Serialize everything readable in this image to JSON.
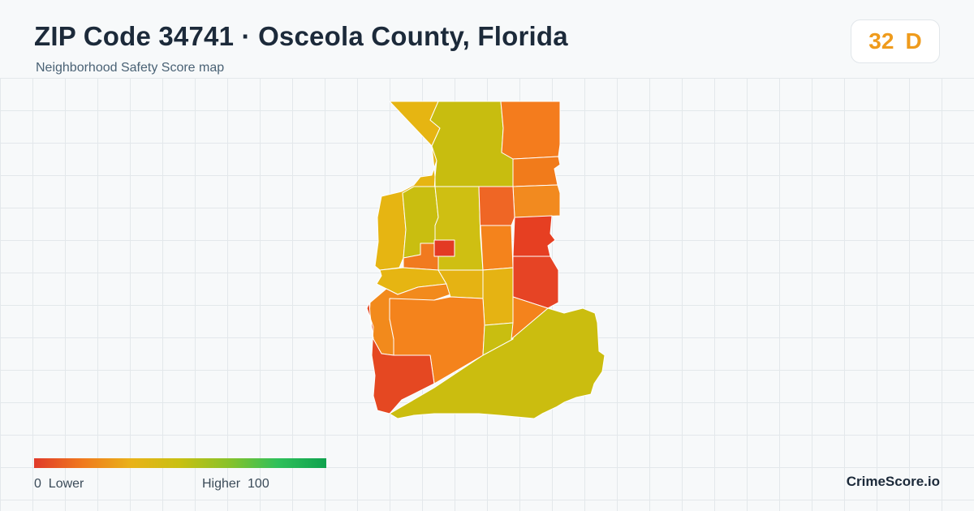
{
  "header": {
    "title": "ZIP Code 34741 · Osceola County, Florida",
    "subtitle": "Neighborhood Safety Score map"
  },
  "score": {
    "value": "32",
    "grade": "D",
    "color": "#ef9b1c"
  },
  "legend": {
    "low_value": "0",
    "low_label": "Lower",
    "high_label": "Higher",
    "high_value": "100",
    "gradient_colors": [
      "#e03a2a",
      "#f07a1e",
      "#e9b219",
      "#c8c012",
      "#88c22a",
      "#2fc05a",
      "#0fa24e"
    ]
  },
  "brand": {
    "name": "CrimeScore.io"
  },
  "map_regions": [
    {
      "id": "north-west",
      "color": "#e6b512"
    },
    {
      "id": "north-center",
      "color": "#c8bd0f"
    },
    {
      "id": "north-east",
      "color": "#f47c1d"
    },
    {
      "id": "east-1",
      "color": "#f17b1b"
    },
    {
      "id": "east-2",
      "color": "#f28a1f"
    },
    {
      "id": "center-left",
      "color": "#c9be10"
    },
    {
      "id": "center-mid",
      "color": "#cfbf12"
    },
    {
      "id": "center-red-small",
      "color": "#e33a24"
    },
    {
      "id": "center-orange-small",
      "color": "#f17a1f"
    },
    {
      "id": "east-red-1",
      "color": "#ef6625"
    },
    {
      "id": "east-red-2",
      "color": "#e63f22"
    },
    {
      "id": "east-orange-3",
      "color": "#f4831c"
    },
    {
      "id": "east-red-3",
      "color": "#e64425"
    },
    {
      "id": "west-strip",
      "color": "#e6b512"
    },
    {
      "id": "mid-orange",
      "color": "#f28a1c"
    },
    {
      "id": "mid-yellow",
      "color": "#e5b313"
    },
    {
      "id": "south-center",
      "color": "#f4831c"
    },
    {
      "id": "south-west-red",
      "color": "#e54822"
    },
    {
      "id": "south-east-band",
      "color": "#cbbd0f"
    },
    {
      "id": "south-mid-yellow",
      "color": "#c9be10"
    },
    {
      "id": "east-orange-4",
      "color": "#f4831c"
    }
  ]
}
